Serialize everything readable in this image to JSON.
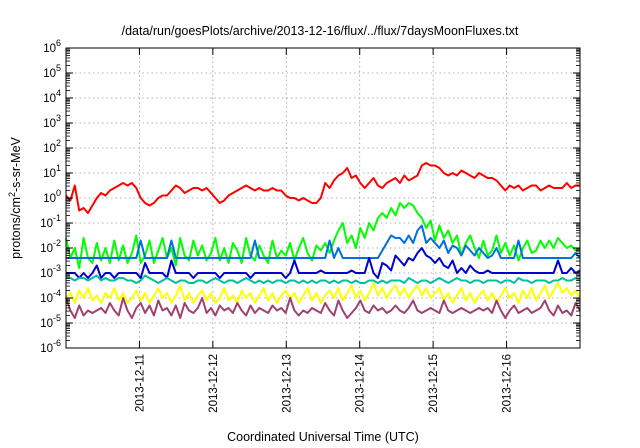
{
  "chart_data": {
    "type": "line",
    "title": "/data/run/goesPlots/archive/2013-12-16/flux/../flux/7daysMoonFluxes.txt",
    "xlabel": "Coordinated Universal Time (UTC)",
    "ylabel": "protons/cm²-s-sr-MeV",
    "ylabel_parts": {
      "base": "protons/cm",
      "sup": "2",
      "rest": "-s-sr-MeV"
    },
    "yscale": "log",
    "ylim_exp": [
      -6,
      6
    ],
    "xlim_days": [
      0,
      7
    ],
    "x_tick_labels": [
      "2013-12-11",
      "2013-12-12",
      "2013-12-13",
      "2013-12-14",
      "2013-12-15",
      "2013-12-16"
    ],
    "x_tick_days": [
      1,
      2,
      3,
      4,
      5,
      6
    ],
    "y_ticks": [
      {
        "base": "10",
        "exp": "-6",
        "value": -6
      },
      {
        "base": "10",
        "exp": "-5",
        "value": -5
      },
      {
        "base": "10",
        "exp": "-4",
        "value": -4
      },
      {
        "base": "10",
        "exp": "-3",
        "value": -3
      },
      {
        "base": "10",
        "exp": "-2",
        "value": -2
      },
      {
        "base": "10",
        "exp": "-1",
        "value": -1
      },
      {
        "base": "10",
        "exp": "0",
        "value": 0
      },
      {
        "base": "10",
        "exp": "1",
        "value": 1
      },
      {
        "base": "10",
        "exp": "2",
        "value": 2
      },
      {
        "base": "10",
        "exp": "3",
        "value": 3
      },
      {
        "base": "10",
        "exp": "4",
        "value": 4
      },
      {
        "base": "10",
        "exp": "5",
        "value": 5
      },
      {
        "base": "10",
        "exp": "6",
        "value": 6
      }
    ],
    "grid": true,
    "series": [
      {
        "color": "#ff0000",
        "log_values": [
          0.1,
          -0.1,
          0.5,
          -0.5,
          -0.4,
          -0.6,
          -0.3,
          0.0,
          0.2,
          0.1,
          0.3,
          0.4,
          0.5,
          0.6,
          0.5,
          0.6,
          0.4,
          0.0,
          -0.2,
          -0.3,
          -0.2,
          0.0,
          0.1,
          0.1,
          0.3,
          0.5,
          0.4,
          0.2,
          0.3,
          0.4,
          0.4,
          0.3,
          0.4,
          0.2,
          0.0,
          -0.2,
          -0.1,
          0.1,
          0.2,
          0.3,
          0.4,
          0.5,
          0.4,
          0.3,
          0.4,
          0.3,
          0.3,
          0.4,
          0.3,
          0.3,
          0.1,
          0.0,
          0.0,
          -0.1,
          0.0,
          -0.1,
          -0.2,
          -0.2,
          0.0,
          0.6,
          0.4,
          0.7,
          0.9,
          1.0,
          1.2,
          0.8,
          0.9,
          0.6,
          0.4,
          0.6,
          0.8,
          0.5,
          0.4,
          0.6,
          0.7,
          0.8,
          0.6,
          0.9,
          0.7,
          0.8,
          0.9,
          1.3,
          1.4,
          1.3,
          1.3,
          1.2,
          1.0,
          0.9,
          1.0,
          0.9,
          1.1,
          1.0,
          0.9,
          0.8,
          1.0,
          0.9,
          0.8,
          0.8,
          0.7,
          0.5,
          0.3,
          0.5,
          0.4,
          0.5,
          0.3,
          0.4,
          0.5,
          0.5,
          0.3,
          0.4,
          0.5,
          0.4,
          0.4,
          0.4,
          0.6,
          0.4,
          0.5,
          0.5
        ]
      },
      {
        "color": "#00ff00",
        "log_values": [
          -1.6,
          -2.4,
          -2.0,
          -2.8,
          -1.6,
          -2.4,
          -2.6,
          -1.8,
          -2.5,
          -2.0,
          -2.6,
          -1.7,
          -2.5,
          -1.9,
          -2.6,
          -2.2,
          -1.5,
          -2.6,
          -2.3,
          -1.7,
          -2.6,
          -2.1,
          -1.6,
          -2.4,
          -2.0,
          -2.7,
          -1.6,
          -2.3,
          -2.5,
          -1.7,
          -2.3,
          -1.9,
          -2.5,
          -2.2,
          -1.6,
          -2.5,
          -2.0,
          -2.6,
          -1.8,
          -2.1,
          -2.6,
          -1.6,
          -2.3,
          -2.5,
          -1.9,
          -2.3,
          -2.6,
          -1.7,
          -2.4,
          -2.1,
          -2.3,
          -1.8,
          -2.5,
          -2.0,
          -1.6,
          -2.2,
          -2.5,
          -1.9,
          -2.1,
          -1.8,
          -2.2,
          -1.7,
          -1.3,
          -1.0,
          -1.8,
          -1.5,
          -2.0,
          -1.2,
          -1.6,
          -1.0,
          -1.3,
          -0.8,
          -0.6,
          -0.8,
          -0.4,
          -0.7,
          -0.2,
          -0.4,
          -0.2,
          -0.3,
          -0.6,
          -0.8,
          -1.2,
          -0.9,
          -1.7,
          -1.1,
          -1.6,
          -1.3,
          -1.8,
          -1.5,
          -2.3,
          -1.8,
          -1.5,
          -2.0,
          -2.4,
          -1.7,
          -2.3,
          -2.1,
          -1.5,
          -2.2,
          -1.8,
          -2.3,
          -1.9,
          -2.5,
          -2.0,
          -1.7,
          -2.2,
          -2.1,
          -1.7,
          -2.0,
          -1.7,
          -2.0,
          -1.6,
          -1.8,
          -2.0,
          -1.9,
          -2.1,
          -2.0
        ]
      },
      {
        "color": "#0070e0",
        "log_values": [
          -2.4,
          -2.4,
          -2.4,
          -2.4,
          -2.4,
          -2.4,
          -2.4,
          -2.4,
          -2.4,
          -2.4,
          -2.4,
          -2.4,
          -2.4,
          -2.4,
          -2.4,
          -2.4,
          -2.4,
          -1.7,
          -2.4,
          -2.4,
          -2.4,
          -2.4,
          -2.4,
          -2.4,
          -1.7,
          -2.4,
          -2.4,
          -2.4,
          -2.4,
          -2.4,
          -2.4,
          -2.4,
          -2.4,
          -2.4,
          -2.4,
          -2.4,
          -2.4,
          -2.4,
          -2.4,
          -2.4,
          -2.4,
          -2.4,
          -2.4,
          -1.7,
          -2.4,
          -2.4,
          -2.4,
          -2.4,
          -2.4,
          -2.4,
          -2.4,
          -2.4,
          -2.4,
          -2.4,
          -2.4,
          -2.4,
          -2.4,
          -2.4,
          -2.4,
          -2.4,
          -1.7,
          -2.4,
          -2.0,
          -2.4,
          -2.4,
          -2.4,
          -2.4,
          -2.4,
          -2.4,
          -2.4,
          -2.4,
          -2.4,
          -2.1,
          -1.8,
          -1.5,
          -1.6,
          -1.6,
          -1.8,
          -1.5,
          -1.8,
          -1.3,
          -1.1,
          -1.8,
          -1.6,
          -1.8,
          -2.0,
          -1.7,
          -2.2,
          -1.9,
          -2.0,
          -2.3,
          -1.9,
          -2.1,
          -2.3,
          -2.0,
          -2.2,
          -2.4,
          -2.3,
          -2.0,
          -2.4,
          -2.4,
          -2.4,
          -2.4,
          -1.7,
          -2.4,
          -2.4,
          -2.4,
          -2.4,
          -2.4,
          -2.4,
          -2.4,
          -2.4,
          -2.4,
          -2.4,
          -2.4,
          -2.4,
          -2.2,
          -2.4
        ]
      },
      {
        "color": "#0000d0",
        "log_values": [
          -3.0,
          -3.0,
          -3.0,
          -3.2,
          -3.0,
          -3.2,
          -3.0,
          -2.7,
          -3.2,
          -3.0,
          -3.0,
          -3.2,
          -3.0,
          -3.0,
          -3.0,
          -3.0,
          -3.0,
          -3.2,
          -2.6,
          -3.0,
          -3.0,
          -3.0,
          -3.0,
          -3.2,
          -2.5,
          -3.0,
          -3.0,
          -3.0,
          -3.0,
          -3.2,
          -3.0,
          -3.0,
          -3.0,
          -3.0,
          -3.0,
          -3.2,
          -3.0,
          -3.0,
          -3.0,
          -3.0,
          -3.0,
          -3.0,
          -3.2,
          -3.0,
          -3.0,
          -3.0,
          -3.0,
          -3.0,
          -3.0,
          -3.0,
          -3.2,
          -3.0,
          -2.5,
          -3.0,
          -3.0,
          -3.0,
          -3.0,
          -3.0,
          -2.9,
          -3.0,
          -3.0,
          -3.0,
          -3.0,
          -3.0,
          -3.0,
          -2.9,
          -3.0,
          -3.0,
          -3.0,
          -2.4,
          -3.0,
          -3.2,
          -2.6,
          -2.7,
          -2.9,
          -2.3,
          -2.5,
          -2.7,
          -2.4,
          -2.5,
          -2.2,
          -2.0,
          -2.3,
          -2.4,
          -2.6,
          -2.4,
          -2.7,
          -2.8,
          -2.5,
          -3.0,
          -2.8,
          -3.0,
          -2.7,
          -2.9,
          -3.0,
          -3.0,
          -2.9,
          -3.0,
          -3.0,
          -3.0,
          -3.0,
          -3.0,
          -3.0,
          -3.0,
          -3.0,
          -3.0,
          -3.0,
          -3.0,
          -3.0,
          -3.0,
          -3.0,
          -3.0,
          -2.5,
          -3.0,
          -3.0,
          -2.8,
          -3.0,
          -2.9
        ]
      },
      {
        "color": "#00c0a0",
        "log_values": [
          -3.2,
          -3.2,
          -3.3,
          -3.2,
          -3.2,
          -3.3,
          -3.2,
          -3.1,
          -3.3,
          -3.2,
          -3.3,
          -3.3,
          -3.2,
          -3.2,
          -3.3,
          -3.3,
          -3.4,
          -3.3,
          -3.1,
          -3.2,
          -3.3,
          -3.4,
          -3.3,
          -3.2,
          -3.3,
          -3.4,
          -3.3,
          -3.3,
          -3.4,
          -3.4,
          -3.3,
          -3.3,
          -3.4,
          -3.3,
          -3.2,
          -3.3,
          -3.4,
          -3.3,
          -3.3,
          -3.4,
          -3.3,
          -3.2,
          -3.3,
          -3.4,
          -3.3,
          -3.4,
          -3.3,
          -3.4,
          -3.3,
          -3.3,
          -3.4,
          -3.3,
          -3.3,
          -3.4,
          -3.3,
          -3.4,
          -3.3,
          -3.4,
          -3.3,
          -3.3,
          -3.4,
          -3.3,
          -3.4,
          -3.3,
          -3.3,
          -3.4,
          -3.3,
          -3.4,
          -3.4,
          -3.3,
          -3.3,
          -3.4,
          -3.3,
          -3.4,
          -3.3,
          -3.3,
          -3.3,
          -3.4,
          -3.2,
          -3.3,
          -3.4,
          -3.3,
          -3.3,
          -3.4,
          -3.3,
          -3.2,
          -3.3,
          -3.4,
          -3.3,
          -3.2,
          -3.3,
          -3.3,
          -3.4,
          -3.3,
          -3.3,
          -3.4,
          -3.3,
          -3.3,
          -3.3,
          -3.4,
          -3.3,
          -3.3,
          -3.4,
          -3.2,
          -3.3,
          -3.3,
          -3.4,
          -3.3,
          -3.3,
          -3.3,
          -3.4,
          -3.3,
          -3.3,
          -3.2,
          -3.3,
          -3.3,
          -3.2,
          -3.3
        ]
      },
      {
        "color": "#ffff00",
        "log_values": [
          -4.0,
          -3.8,
          -4.2,
          -3.7,
          -4.0,
          -3.6,
          -4.1,
          -3.9,
          -4.2,
          -3.8,
          -4.0,
          -3.6,
          -4.1,
          -3.8,
          -4.2,
          -4.0,
          -3.7,
          -4.1,
          -3.8,
          -4.2,
          -3.9,
          -3.6,
          -4.0,
          -3.8,
          -4.2,
          -3.9,
          -3.5,
          -4.1,
          -3.8,
          -4.2,
          -3.9,
          -3.7,
          -4.1,
          -3.8,
          -4.2,
          -4.0,
          -3.6,
          -4.1,
          -3.9,
          -4.2,
          -3.7,
          -4.0,
          -3.8,
          -4.2,
          -3.9,
          -3.6,
          -4.1,
          -3.8,
          -4.2,
          -3.9,
          -3.7,
          -4.0,
          -3.8,
          -4.2,
          -3.9,
          -3.6,
          -4.1,
          -3.8,
          -4.2,
          -3.9,
          -3.7,
          -4.0,
          -3.6,
          -4.1,
          -3.8,
          -3.5,
          -4.0,
          -3.7,
          -4.1,
          -3.8,
          -3.4,
          -3.9,
          -3.6,
          -4.0,
          -3.7,
          -3.5,
          -3.9,
          -3.6,
          -4.0,
          -3.7,
          -3.5,
          -3.9,
          -3.6,
          -4.0,
          -3.8,
          -3.6,
          -4.1,
          -3.8,
          -4.2,
          -3.9,
          -3.6,
          -4.1,
          -3.8,
          -4.2,
          -3.9,
          -3.7,
          -4.1,
          -3.8,
          -4.2,
          -3.9,
          -3.6,
          -4.0,
          -3.8,
          -4.2,
          -3.7,
          -4.0,
          -3.6,
          -4.1,
          -3.8,
          -3.5,
          -4.0,
          -3.7,
          -3.4,
          -3.8,
          -3.6,
          -3.9,
          -3.7,
          -4.0
        ]
      },
      {
        "color": "#a04070",
        "log_values": [
          -4.0,
          -4.5,
          -4.8,
          -4.3,
          -4.7,
          -4.5,
          -4.6,
          -4.5,
          -4.4,
          -4.6,
          -4.2,
          -4.5,
          -4.7,
          -4.0,
          -4.5,
          -4.8,
          -4.4,
          -4.2,
          -4.6,
          -4.3,
          -4.7,
          -4.1,
          -4.5,
          -4.4,
          -4.7,
          -4.3,
          -4.8,
          -4.2,
          -4.5,
          -4.6,
          -4.4,
          -4.0,
          -4.6,
          -4.4,
          -4.7,
          -4.3,
          -4.5,
          -4.4,
          -4.6,
          -4.2,
          -4.5,
          -4.7,
          -4.3,
          -4.6,
          -4.4,
          -4.5,
          -4.6,
          -4.3,
          -4.5,
          -4.4,
          -4.6,
          -4.0,
          -4.5,
          -4.7,
          -4.5,
          -4.6,
          -4.4,
          -4.5,
          -4.6,
          -4.2,
          -4.5,
          -4.7,
          -4.1,
          -4.5,
          -4.8,
          -4.6,
          -4.4,
          -4.1,
          -4.5,
          -4.6,
          -4.3,
          -4.5,
          -4.4,
          -4.6,
          -4.5,
          -4.3,
          -4.5,
          -4.6,
          -4.4,
          -4.1,
          -4.5,
          -4.6,
          -4.5,
          -4.4,
          -4.5,
          -4.6,
          -4.1,
          -4.5,
          -4.6,
          -4.5,
          -4.4,
          -4.5,
          -4.6,
          -4.5,
          -4.4,
          -4.5,
          -4.4,
          -4.6,
          -4.1,
          -4.5,
          -4.8,
          -4.5,
          -4.3,
          -4.6,
          -4.5,
          -4.4,
          -4.6,
          -4.5,
          -4.4,
          -4.1,
          -4.5,
          -4.7,
          -4.3,
          -4.6,
          -4.5,
          -4.7,
          -4.2,
          -4.5
        ]
      }
    ]
  }
}
